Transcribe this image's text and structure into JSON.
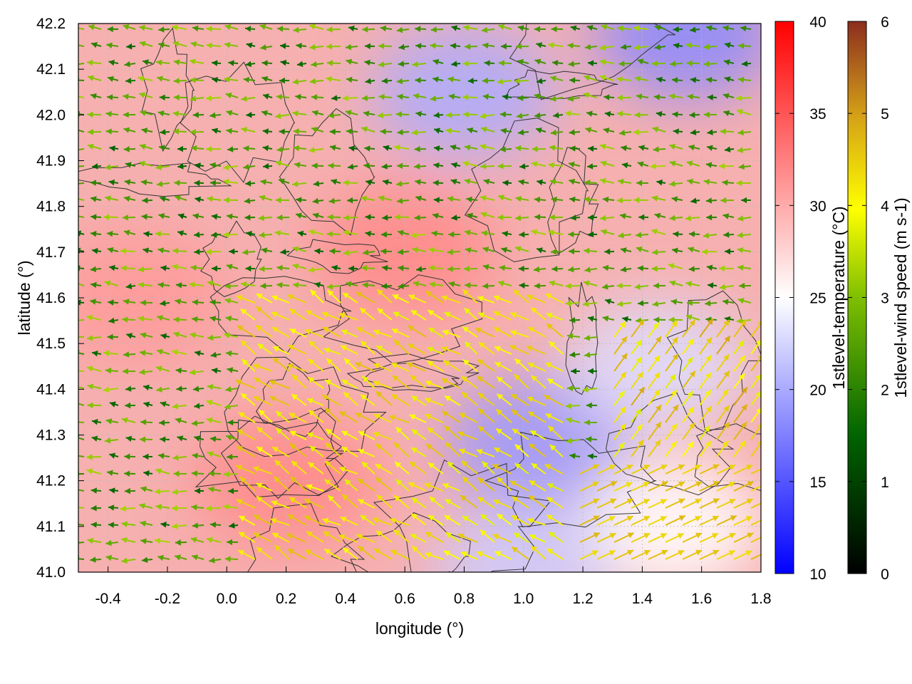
{
  "chart_data": {
    "type": "heatmap",
    "title": "",
    "xlabel": "longitude (°)",
    "ylabel": "latitude (°)",
    "xlim": [
      -0.5,
      1.8
    ],
    "ylim": [
      41.0,
      42.2
    ],
    "x_ticks": [
      "-0.4",
      "-0.2",
      "0.0",
      "0.2",
      "0.4",
      "0.6",
      "0.8",
      "1.0",
      "1.2",
      "1.4",
      "1.6",
      "1.8"
    ],
    "x_tick_values": [
      -0.4,
      -0.2,
      0.0,
      0.2,
      0.4,
      0.6,
      0.8,
      1.0,
      1.2,
      1.4,
      1.6,
      1.8
    ],
    "y_ticks": [
      "41.0",
      "41.1",
      "41.2",
      "41.3",
      "41.4",
      "41.5",
      "41.6",
      "41.7",
      "41.8",
      "41.9",
      "42.0",
      "42.1",
      "42.2"
    ],
    "y_tick_values": [
      41.0,
      41.1,
      41.2,
      41.3,
      41.4,
      41.5,
      41.6,
      41.7,
      41.8,
      41.9,
      42.0,
      42.1,
      42.2
    ],
    "grid": true,
    "layers": [
      {
        "kind": "color-field",
        "variable": "1stlevel-temperature",
        "colorbar_label": "1stlevel-temperature (°C)",
        "range": [
          10,
          40
        ],
        "ticks": [
          "10",
          "15",
          "20",
          "25",
          "30",
          "35",
          "40"
        ],
        "tick_values": [
          10,
          15,
          20,
          25,
          30,
          35,
          40
        ],
        "colors": [
          "#0000ff",
          "#ffffff",
          "#ff0000"
        ],
        "regions": [
          {
            "lon": -0.3,
            "lat": 41.6,
            "value": 31
          },
          {
            "lon": 0.2,
            "lat": 41.2,
            "value": 32
          },
          {
            "lon": 0.6,
            "lat": 41.7,
            "value": 32
          },
          {
            "lon": 0.8,
            "lat": 42.05,
            "value": 20
          },
          {
            "lon": 1.55,
            "lat": 42.18,
            "value": 18
          },
          {
            "lon": 1.05,
            "lat": 41.28,
            "value": 19
          },
          {
            "lon": 1.5,
            "lat": 41.1,
            "value": 25
          },
          {
            "lon": 1.0,
            "lat": 41.0,
            "value": 22
          },
          {
            "lon": 1.45,
            "lat": 41.45,
            "value": 23
          }
        ]
      },
      {
        "kind": "vector-field",
        "variable": "1stlevel-wind",
        "colorbar_label": "1stlevel-wind speed (m s-1)",
        "range": [
          0,
          6
        ],
        "ticks": [
          "0",
          "1",
          "2",
          "3",
          "4",
          "5",
          "6"
        ],
        "tick_values": [
          0,
          1,
          2,
          3,
          4,
          5,
          6
        ],
        "colors": [
          "#000000",
          "#006400",
          "#7fbf00",
          "#ffff00",
          "#d4a017",
          "#8b2e1e"
        ],
        "regimes": [
          {
            "area": "west",
            "direction": "westward",
            "speed": 2.0
          },
          {
            "area": "southeast-coast",
            "direction": "northeastward",
            "speed": 4.2
          },
          {
            "area": "central-south",
            "direction": "northwestward",
            "speed": 3.8
          }
        ]
      },
      {
        "kind": "contour",
        "variable": "terrain",
        "color": "#333333"
      }
    ]
  }
}
